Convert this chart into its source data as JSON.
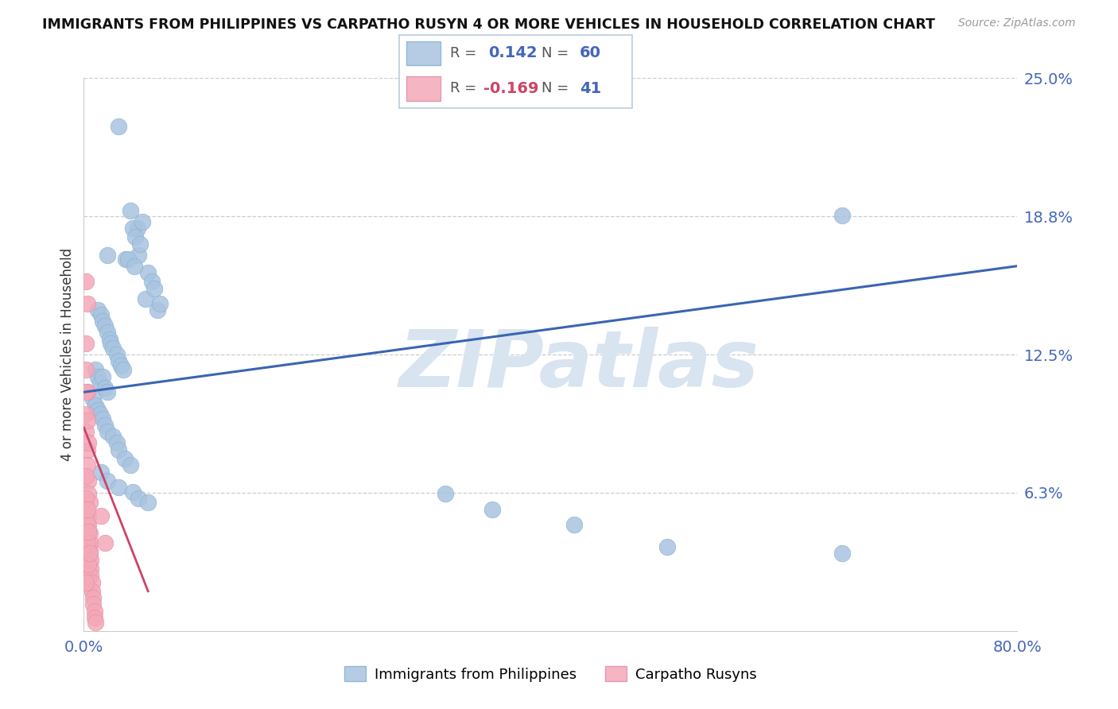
{
  "title": "IMMIGRANTS FROM PHILIPPINES VS CARPATHO RUSYN 4 OR MORE VEHICLES IN HOUSEHOLD CORRELATION CHART",
  "source": "Source: ZipAtlas.com",
  "ylabel": "4 or more Vehicles in Household",
  "xlim": [
    0.0,
    0.8
  ],
  "ylim": [
    0.0,
    0.25
  ],
  "yticks": [
    0.0625,
    0.125,
    0.1875,
    0.25
  ],
  "ytick_labels": [
    "6.3%",
    "12.5%",
    "18.8%",
    "25.0%"
  ],
  "legend_labels": [
    "Immigrants from Philippines",
    "Carpatho Rusyns"
  ],
  "r_philippines": 0.142,
  "n_philippines": 60,
  "r_carpatho": -0.169,
  "n_carpatho": 41,
  "blue_color": "#a8c4e0",
  "pink_color": "#f4a8b8",
  "blue_line_color": "#3a65b0",
  "pink_line_color": "#cc4466",
  "watermark_color": "#d8e4f0",
  "blue_dots": [
    [
      0.03,
      0.228
    ],
    [
      0.046,
      0.182
    ],
    [
      0.02,
      0.17
    ],
    [
      0.036,
      0.168
    ],
    [
      0.04,
      0.19
    ],
    [
      0.042,
      0.182
    ],
    [
      0.044,
      0.178
    ],
    [
      0.047,
      0.17
    ],
    [
      0.048,
      0.175
    ],
    [
      0.05,
      0.185
    ],
    [
      0.038,
      0.168
    ],
    [
      0.055,
      0.162
    ],
    [
      0.043,
      0.165
    ],
    [
      0.058,
      0.158
    ],
    [
      0.053,
      0.15
    ],
    [
      0.06,
      0.155
    ],
    [
      0.063,
      0.145
    ],
    [
      0.065,
      0.148
    ],
    [
      0.012,
      0.145
    ],
    [
      0.015,
      0.143
    ],
    [
      0.016,
      0.14
    ],
    [
      0.018,
      0.138
    ],
    [
      0.02,
      0.135
    ],
    [
      0.022,
      0.132
    ],
    [
      0.023,
      0.13
    ],
    [
      0.025,
      0.128
    ],
    [
      0.028,
      0.125
    ],
    [
      0.03,
      0.122
    ],
    [
      0.032,
      0.12
    ],
    [
      0.034,
      0.118
    ],
    [
      0.01,
      0.118
    ],
    [
      0.012,
      0.115
    ],
    [
      0.014,
      0.112
    ],
    [
      0.016,
      0.115
    ],
    [
      0.018,
      0.11
    ],
    [
      0.02,
      0.108
    ],
    [
      0.008,
      0.105
    ],
    [
      0.01,
      0.102
    ],
    [
      0.012,
      0.1
    ],
    [
      0.014,
      0.098
    ],
    [
      0.016,
      0.096
    ],
    [
      0.018,
      0.093
    ],
    [
      0.02,
      0.09
    ],
    [
      0.025,
      0.088
    ],
    [
      0.028,
      0.085
    ],
    [
      0.03,
      0.082
    ],
    [
      0.035,
      0.078
    ],
    [
      0.04,
      0.075
    ],
    [
      0.015,
      0.072
    ],
    [
      0.02,
      0.068
    ],
    [
      0.03,
      0.065
    ],
    [
      0.042,
      0.063
    ],
    [
      0.047,
      0.06
    ],
    [
      0.055,
      0.058
    ],
    [
      0.31,
      0.062
    ],
    [
      0.35,
      0.055
    ],
    [
      0.42,
      0.048
    ],
    [
      0.5,
      0.038
    ],
    [
      0.65,
      0.035
    ],
    [
      0.65,
      0.188
    ]
  ],
  "pink_dots": [
    [
      0.002,
      0.158
    ],
    [
      0.003,
      0.148
    ],
    [
      0.002,
      0.13
    ],
    [
      0.002,
      0.118
    ],
    [
      0.003,
      0.108
    ],
    [
      0.002,
      0.098
    ],
    [
      0.002,
      0.09
    ],
    [
      0.003,
      0.082
    ],
    [
      0.003,
      0.075
    ],
    [
      0.004,
      0.068
    ],
    [
      0.004,
      0.062
    ],
    [
      0.005,
      0.058
    ],
    [
      0.004,
      0.052
    ],
    [
      0.004,
      0.048
    ],
    [
      0.005,
      0.044
    ],
    [
      0.005,
      0.04
    ],
    [
      0.005,
      0.036
    ],
    [
      0.006,
      0.032
    ],
    [
      0.006,
      0.028
    ],
    [
      0.006,
      0.025
    ],
    [
      0.007,
      0.022
    ],
    [
      0.007,
      0.018
    ],
    [
      0.008,
      0.015
    ],
    [
      0.008,
      0.012
    ],
    [
      0.009,
      0.009
    ],
    [
      0.009,
      0.006
    ],
    [
      0.01,
      0.004
    ],
    [
      0.002,
      0.07
    ],
    [
      0.002,
      0.06
    ],
    [
      0.003,
      0.05
    ],
    [
      0.003,
      0.04
    ],
    [
      0.004,
      0.03
    ],
    [
      0.002,
      0.108
    ],
    [
      0.003,
      0.095
    ],
    [
      0.004,
      0.085
    ],
    [
      0.015,
      0.052
    ],
    [
      0.018,
      0.04
    ],
    [
      0.003,
      0.055
    ],
    [
      0.004,
      0.045
    ],
    [
      0.005,
      0.035
    ],
    [
      0.002,
      0.022
    ]
  ],
  "blue_line": [
    [
      0.0,
      0.108
    ],
    [
      0.8,
      0.165
    ]
  ],
  "pink_line": [
    [
      0.0,
      0.092
    ],
    [
      0.055,
      0.018
    ]
  ]
}
